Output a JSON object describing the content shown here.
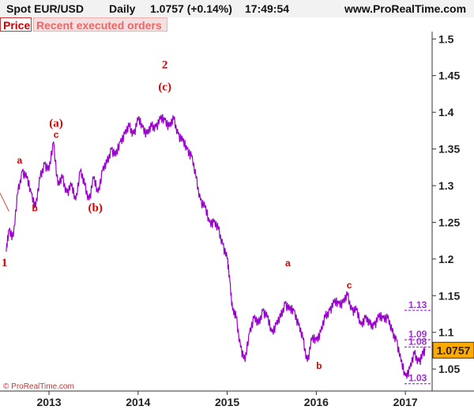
{
  "header": {
    "symbol": "Spot EUR/USD",
    "period": "Daily",
    "price": "1.0757 (+0.14%)",
    "time": "17:49:54",
    "site": "www.ProRealTime.com"
  },
  "tabs": {
    "price": "Price",
    "orders": "Recent executed orders"
  },
  "copyright": "© ProRealTime.com",
  "last_price_label": "1.0757",
  "colors": {
    "series": "#9900cc",
    "wave_labels": "#dd0000",
    "last_price_box": "#ffaa00",
    "level_lines": "#9933cc"
  },
  "chart_data": {
    "type": "line",
    "title": "Spot EUR/USD Daily",
    "ylim": [
      1.02,
      1.51
    ],
    "xlim": [
      2012.45,
      2017.3
    ],
    "y_ticks": [
      1.05,
      1.1,
      1.15,
      1.2,
      1.25,
      1.3,
      1.35,
      1.4,
      1.45,
      1.5
    ],
    "y_tick_labels": [
      "1.05",
      "1.1",
      "1.15",
      "1.2",
      "1.25",
      "1.3",
      "1.35",
      "1.4",
      "1.45",
      "1.5"
    ],
    "x_ticks": [
      2013,
      2014,
      2015,
      2016,
      2017
    ],
    "x_tick_labels": [
      "2013",
      "2014",
      "2015",
      "2016",
      "2017"
    ],
    "series": [
      {
        "color": "#9900cc",
        "x": [
          2012.52,
          2012.55,
          2012.6,
          2012.65,
          2012.7,
          2012.75,
          2012.8,
          2012.85,
          2012.9,
          2012.95,
          2013.0,
          2013.05,
          2013.1,
          2013.15,
          2013.2,
          2013.25,
          2013.3,
          2013.35,
          2013.4,
          2013.45,
          2013.5,
          2013.55,
          2013.6,
          2013.65,
          2013.7,
          2013.75,
          2013.8,
          2013.85,
          2013.9,
          2013.95,
          2014.0,
          2014.05,
          2014.1,
          2014.15,
          2014.2,
          2014.25,
          2014.3,
          2014.35,
          2014.4,
          2014.45,
          2014.5,
          2014.55,
          2014.6,
          2014.65,
          2014.7,
          2014.75,
          2014.8,
          2014.85,
          2014.9,
          2014.95,
          2015.0,
          2015.03,
          2015.06,
          2015.1,
          2015.15,
          2015.2,
          2015.25,
          2015.3,
          2015.35,
          2015.4,
          2015.45,
          2015.5,
          2015.55,
          2015.6,
          2015.65,
          2015.7,
          2015.75,
          2015.8,
          2015.85,
          2015.9,
          2015.95,
          2016.0,
          2016.05,
          2016.1,
          2016.15,
          2016.2,
          2016.25,
          2016.3,
          2016.35,
          2016.4,
          2016.45,
          2016.5,
          2016.55,
          2016.6,
          2016.65,
          2016.7,
          2016.75,
          2016.8,
          2016.85,
          2016.9,
          2016.95,
          2017.0,
          2017.05,
          2017.1,
          2017.15,
          2017.2,
          2017.22
        ],
        "y": [
          1.21,
          1.24,
          1.23,
          1.29,
          1.32,
          1.31,
          1.29,
          1.27,
          1.31,
          1.33,
          1.32,
          1.36,
          1.3,
          1.31,
          1.29,
          1.3,
          1.28,
          1.32,
          1.3,
          1.28,
          1.31,
          1.29,
          1.32,
          1.33,
          1.35,
          1.34,
          1.36,
          1.37,
          1.38,
          1.37,
          1.39,
          1.38,
          1.37,
          1.38,
          1.38,
          1.39,
          1.39,
          1.38,
          1.39,
          1.37,
          1.36,
          1.35,
          1.34,
          1.31,
          1.28,
          1.27,
          1.25,
          1.25,
          1.24,
          1.22,
          1.2,
          1.17,
          1.13,
          1.12,
          1.08,
          1.06,
          1.1,
          1.12,
          1.11,
          1.13,
          1.12,
          1.1,
          1.11,
          1.12,
          1.14,
          1.13,
          1.13,
          1.11,
          1.09,
          1.06,
          1.09,
          1.09,
          1.1,
          1.12,
          1.13,
          1.14,
          1.14,
          1.14,
          1.15,
          1.13,
          1.13,
          1.11,
          1.12,
          1.11,
          1.11,
          1.12,
          1.12,
          1.12,
          1.1,
          1.09,
          1.06,
          1.04,
          1.05,
          1.07,
          1.06,
          1.07,
          1.0757
        ]
      }
    ],
    "wave_labels": [
      {
        "text": "1",
        "x": 2012.5,
        "y": 1.19,
        "size": "big"
      },
      {
        "text": "a",
        "x": 2012.67,
        "y": 1.33,
        "size": "small"
      },
      {
        "text": "b",
        "x": 2012.84,
        "y": 1.265,
        "size": "small"
      },
      {
        "text": "(a)",
        "x": 2013.08,
        "y": 1.38,
        "size": "big"
      },
      {
        "text": "c",
        "x": 2013.08,
        "y": 1.365,
        "size": "small"
      },
      {
        "text": "(b)",
        "x": 2013.52,
        "y": 1.265,
        "size": "big"
      },
      {
        "text": "2",
        "x": 2014.3,
        "y": 1.46,
        "size": "big"
      },
      {
        "text": "(c)",
        "x": 2014.3,
        "y": 1.43,
        "size": "big"
      },
      {
        "text": "a",
        "x": 2015.68,
        "y": 1.19,
        "size": "small"
      },
      {
        "text": "b",
        "x": 2016.03,
        "y": 1.05,
        "size": "small"
      },
      {
        "text": "c",
        "x": 2016.37,
        "y": 1.16,
        "size": "small"
      }
    ],
    "levels": [
      {
        "label": "1.13",
        "value": 1.13
      },
      {
        "label": "1.09",
        "value": 1.09
      },
      {
        "label": "1.08",
        "value": 1.08
      },
      {
        "label": "1.03",
        "value": 1.03
      }
    ],
    "trendline": {
      "x": [
        2012.45,
        2012.55
      ],
      "y": [
        1.29,
        1.265
      ]
    },
    "grid": false,
    "last_value": 1.0757
  }
}
